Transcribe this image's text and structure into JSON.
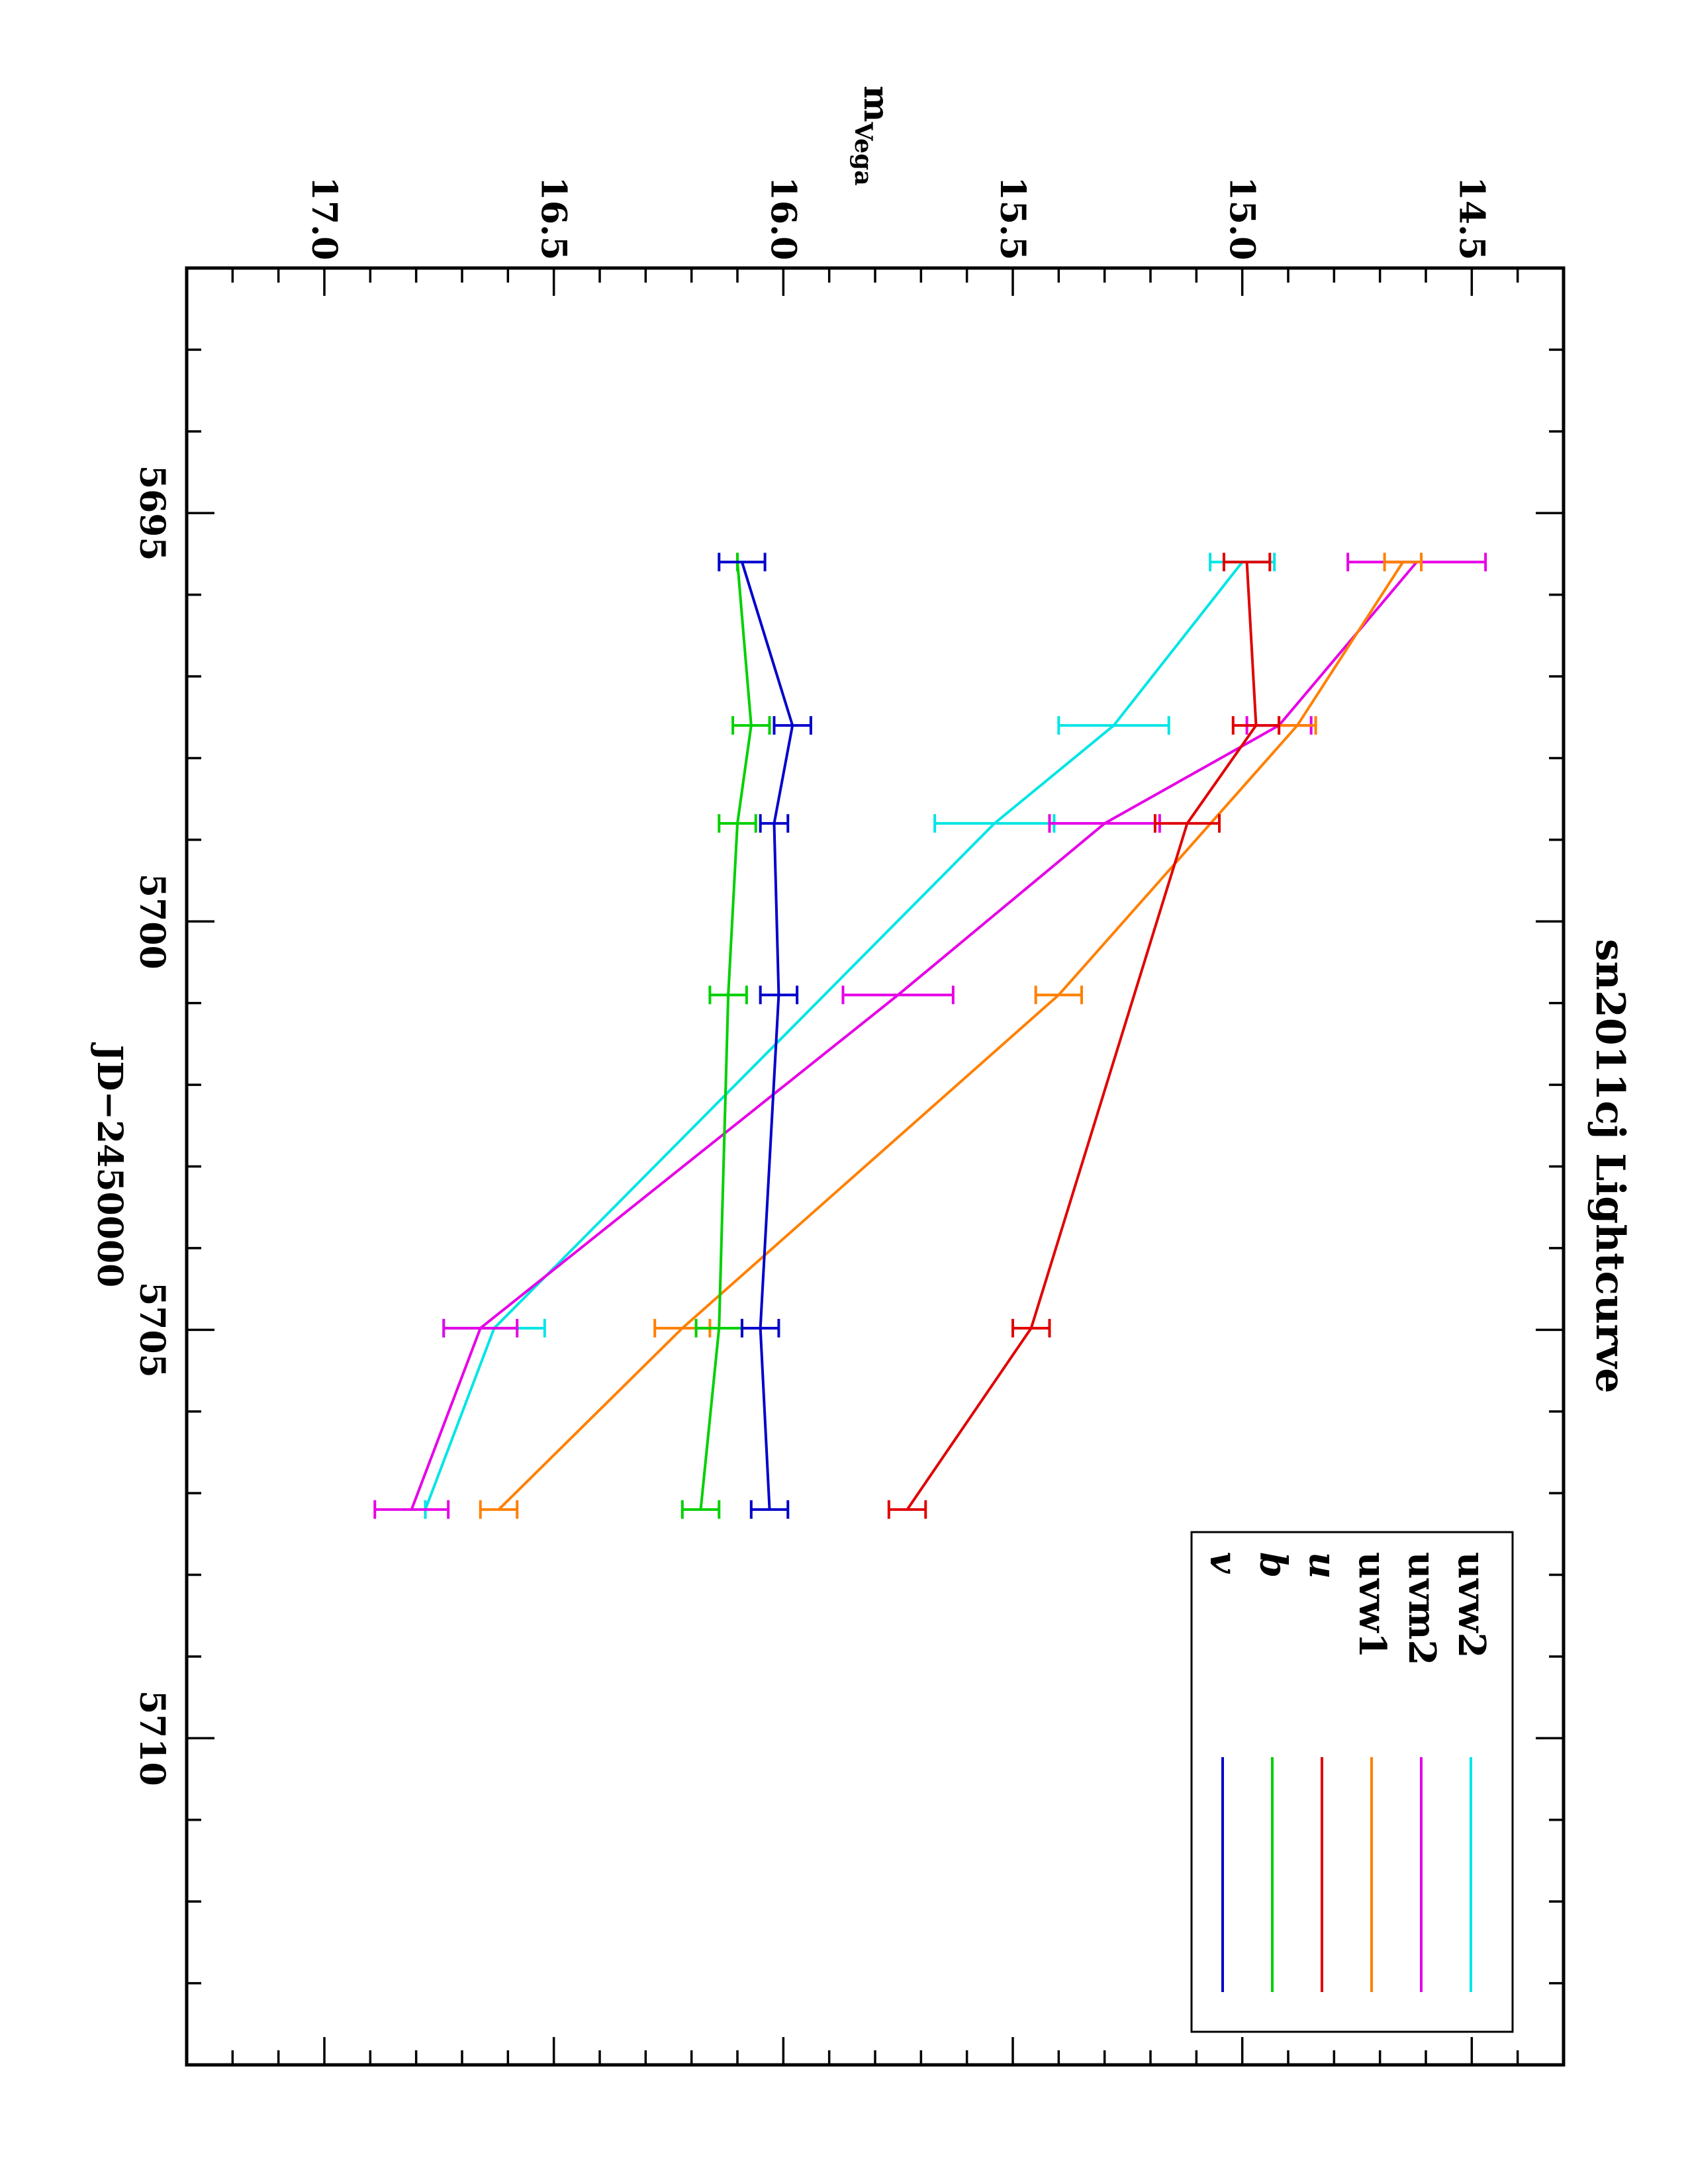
{
  "chart_data": {
    "type": "line",
    "title": "sn2011cj Lightcurve",
    "xlabel": "JD−2450000",
    "ylabel_main": "m",
    "ylabel_sub": "Vega",
    "xlim": [
      5692,
      5714
    ],
    "ylim": [
      17.3,
      14.3
    ],
    "y_inverted": true,
    "x_ticks": [
      5695,
      5700,
      5705,
      5710
    ],
    "x_tick_labels": [
      "5695",
      "5700",
      "5705",
      "5710"
    ],
    "y_ticks": [
      17.0,
      16.5,
      16.0,
      15.5,
      15.0,
      14.5
    ],
    "y_tick_labels": [
      "17.0",
      "16.5",
      "16.0",
      "15.5",
      "15.0",
      "14.5"
    ],
    "legend_position": "bottom-right",
    "series": [
      {
        "name": "uvw2",
        "italic": false,
        "color": "#00e5e5",
        "x": [
          5695.6,
          5697.6,
          5698.8,
          5704.98,
          5707.2
        ],
        "y": [
          15.0,
          15.28,
          15.54,
          16.63,
          16.78
        ],
        "err": [
          0.07,
          0.12,
          0.13,
          0.11,
          0.0
        ]
      },
      {
        "name": "uvm2",
        "italic": false,
        "color": "#e600e6",
        "x": [
          5695.6,
          5697.6,
          5698.8,
          5700.9,
          5704.98,
          5707.2
        ],
        "y": [
          14.62,
          14.92,
          15.3,
          15.75,
          16.66,
          16.81
        ],
        "err": [
          0.15,
          0.07,
          0.12,
          0.12,
          0.08,
          0.08
        ]
      },
      {
        "name": "uvw1",
        "italic": false,
        "color": "#ff8000",
        "x": [
          5695.6,
          5697.6,
          5700.9,
          5704.98,
          5707.2
        ],
        "y": [
          14.65,
          14.88,
          15.4,
          16.22,
          16.62
        ],
        "err": [
          0.04,
          0.04,
          0.05,
          0.06,
          0.04
        ]
      },
      {
        "name": "u",
        "italic": true,
        "color": "#e00000",
        "x": [
          5695.6,
          5697.6,
          5698.8,
          5704.98,
          5707.2
        ],
        "y": [
          14.99,
          14.97,
          15.12,
          15.46,
          15.73
        ],
        "err": [
          0.05,
          0.05,
          0.07,
          0.04,
          0.04
        ]
      },
      {
        "name": "b",
        "italic": true,
        "color": "#00d000",
        "x": [
          5695.6,
          5697.6,
          5698.8,
          5700.9,
          5704.98,
          5707.2
        ],
        "y": [
          16.1,
          16.07,
          16.1,
          16.12,
          16.14,
          16.18
        ],
        "err": [
          0.0,
          0.04,
          0.04,
          0.04,
          0.05,
          0.04
        ]
      },
      {
        "name": "v",
        "italic": true,
        "color": "#0000cc",
        "x": [
          5695.6,
          5697.6,
          5698.8,
          5700.9,
          5704.98,
          5707.2
        ],
        "y": [
          16.09,
          15.98,
          16.02,
          16.01,
          16.05,
          16.03
        ],
        "err": [
          0.05,
          0.04,
          0.03,
          0.04,
          0.04,
          0.04
        ]
      }
    ]
  }
}
